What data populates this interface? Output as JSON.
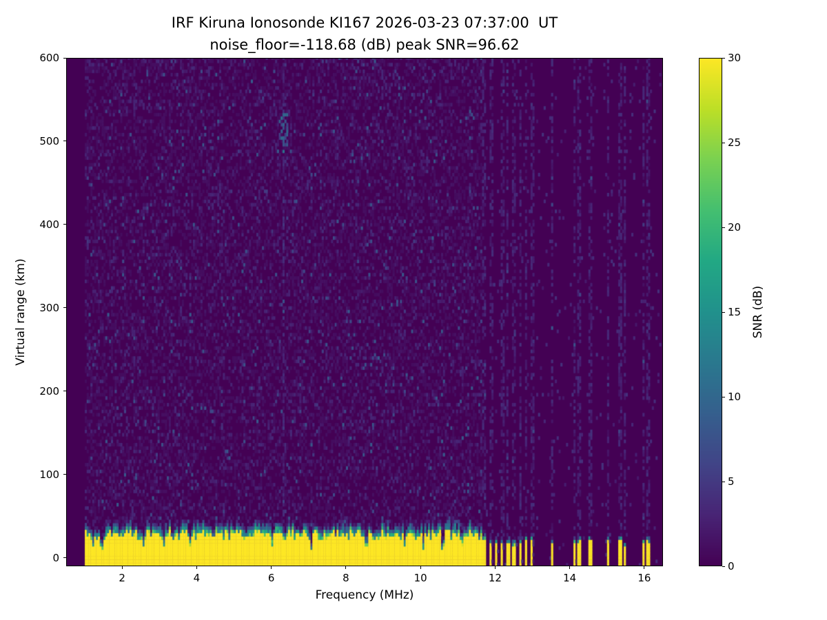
{
  "chart_data": {
    "type": "heatmap",
    "title": "IRF Kiruna Ionosonde KI167 2026-03-23 07:37:00  UT",
    "subtitle": "noise_floor=-118.68 (dB) peak SNR=96.62",
    "station": "IRF Kiruna Ionosonde KI167",
    "timestamp_ut": "2026-03-23 07:37:00",
    "noise_floor_db": -118.68,
    "peak_snr_db": 96.62,
    "xlabel": "Frequency (MHz)",
    "ylabel": "Virtual range (km)",
    "xlim": [
      0.5,
      16.5
    ],
    "ylim": [
      -10,
      600
    ],
    "xticks": [
      2,
      4,
      6,
      8,
      10,
      12,
      14,
      16
    ],
    "yticks": [
      0,
      100,
      200,
      300,
      400,
      500,
      600
    ],
    "grid": false,
    "colorbar": {
      "label": "SNR (dB)",
      "min": 0,
      "max": 30,
      "ticks": [
        0,
        5,
        10,
        15,
        20,
        25,
        30
      ]
    },
    "colormap": "viridis",
    "colormap_stops": [
      "#440154",
      "#482475",
      "#414487",
      "#355f8d",
      "#2a788e",
      "#21918c",
      "#22a884",
      "#44bf70",
      "#7ad151",
      "#bddf26",
      "#fde725"
    ],
    "features": {
      "data_freq_start": 1.0,
      "data_freq_end": 16.45,
      "freq_step": 0.05,
      "range_step_km": 4,
      "ground_echo_band": {
        "freq_start": 1.0,
        "freq_end": 11.62,
        "top_km_mean": 30,
        "snr_db": 30
      },
      "comb": {
        "freq_start": 11.65,
        "freq_end": 13.05,
        "period_mhz": 0.16,
        "stripe_width_mhz": 0.07,
        "stripe_top_km": 22
      },
      "isolated_stripes_mhz": [
        13.5,
        14.1,
        14.22,
        14.52,
        15.0,
        15.33,
        15.45,
        15.95,
        16.07
      ],
      "rfi_lines_mhz": [
        6.3,
        11.9,
        12.2,
        12.5,
        12.8,
        13.0
      ],
      "noise_blob": {
        "freq_mhz": 6.3,
        "range_center_km": 512,
        "range_spread_km": 22
      },
      "background_snr_db": [
        0,
        3
      ],
      "speckle_max_snr_db": 9
    }
  }
}
